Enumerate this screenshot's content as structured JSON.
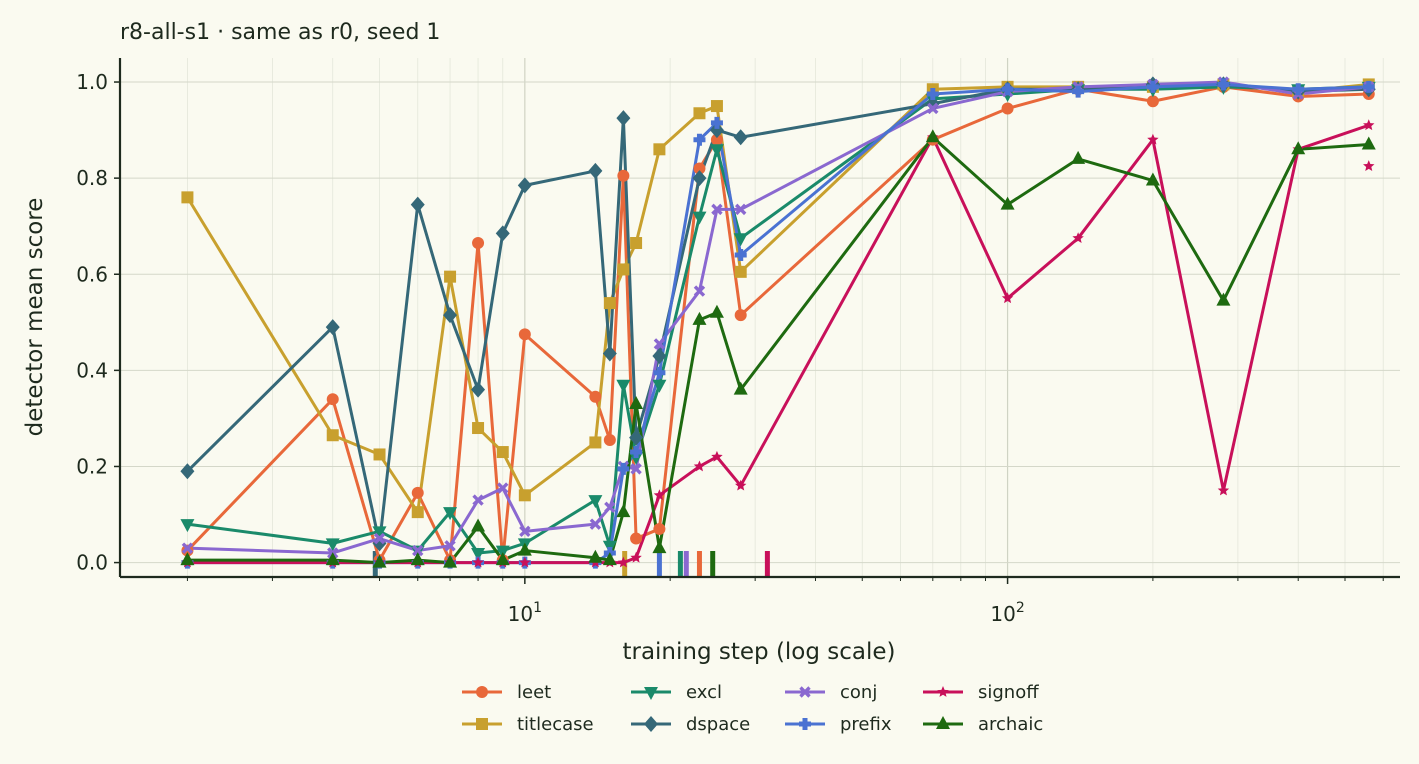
{
  "chart_data": {
    "type": "line",
    "title": "r8-all-s1 · same as r0, seed 1",
    "xlabel": "training step (log scale)",
    "ylabel": "detector mean score",
    "xscale": "log",
    "xlim": [
      1.45,
      650
    ],
    "ylim": [
      -0.03,
      1.05
    ],
    "yticks": [
      "0.0",
      "0.2",
      "0.4",
      "0.6",
      "0.8",
      "1.0"
    ],
    "xticks": [
      {
        "base": "10",
        "exp": "1"
      },
      {
        "base": "10",
        "exp": "2"
      }
    ],
    "grid": true,
    "legend_position": "bottom-center",
    "series": [
      {
        "name": "leet",
        "color": "#e8683a",
        "marker": "circle",
        "points": [
          [
            2,
            0.025
          ],
          [
            4,
            0.34
          ],
          [
            5,
            0.005
          ],
          [
            6,
            0.145
          ],
          [
            7,
            0.005
          ],
          [
            8,
            0.665
          ],
          [
            9,
            0.005
          ],
          [
            10,
            0.475
          ],
          [
            14,
            0.345
          ],
          [
            15,
            0.255
          ],
          [
            16,
            0.805
          ],
          [
            17,
            0.05
          ],
          [
            19,
            0.07
          ],
          [
            23,
            0.82
          ],
          [
            25,
            0.88
          ],
          [
            28,
            0.515
          ],
          [
            70,
            0.88
          ],
          [
            100,
            0.945
          ],
          [
            140,
            0.985
          ],
          [
            200,
            0.96
          ],
          [
            280,
            0.99
          ],
          [
            400,
            0.97
          ],
          [
            560,
            0.975
          ]
        ]
      },
      {
        "name": "titlecase",
        "color": "#c8a02e",
        "marker": "square",
        "points": [
          [
            2,
            0.76
          ],
          [
            4,
            0.265
          ],
          [
            5,
            0.225
          ],
          [
            6,
            0.105
          ],
          [
            7,
            0.595
          ],
          [
            8,
            0.28
          ],
          [
            9,
            0.23
          ],
          [
            10,
            0.14
          ],
          [
            14,
            0.25
          ],
          [
            15,
            0.54
          ],
          [
            16,
            0.61
          ],
          [
            17,
            0.665
          ],
          [
            19,
            0.86
          ],
          [
            23,
            0.935
          ],
          [
            25,
            0.95
          ],
          [
            28,
            0.605
          ],
          [
            70,
            0.985
          ],
          [
            100,
            0.99
          ],
          [
            140,
            0.99
          ],
          [
            200,
            0.99
          ],
          [
            280,
            0.995
          ],
          [
            400,
            0.98
          ],
          [
            560,
            0.995
          ]
        ]
      },
      {
        "name": "excl",
        "color": "#1a8a6a",
        "marker": "triangle-down",
        "points": [
          [
            2,
            0.08
          ],
          [
            4,
            0.04
          ],
          [
            5,
            0.065
          ],
          [
            6,
            0.025
          ],
          [
            7,
            0.105
          ],
          [
            8,
            0.02
          ],
          [
            9,
            0.025
          ],
          [
            10,
            0.04
          ],
          [
            14,
            0.13
          ],
          [
            15,
            0.035
          ],
          [
            16,
            0.37
          ],
          [
            17,
            0.22
          ],
          [
            19,
            0.37
          ],
          [
            23,
            0.72
          ],
          [
            25,
            0.86
          ],
          [
            28,
            0.675
          ],
          [
            70,
            0.965
          ],
          [
            100,
            0.975
          ],
          [
            140,
            0.985
          ],
          [
            200,
            0.985
          ],
          [
            280,
            0.99
          ],
          [
            400,
            0.985
          ],
          [
            560,
            0.99
          ]
        ]
      },
      {
        "name": "dspace",
        "color": "#356878",
        "marker": "diamond",
        "points": [
          [
            2,
            0.19
          ],
          [
            4,
            0.49
          ],
          [
            5,
            0.04
          ],
          [
            6,
            0.745
          ],
          [
            7,
            0.515
          ],
          [
            8,
            0.36
          ],
          [
            9,
            0.685
          ],
          [
            10,
            0.785
          ],
          [
            14,
            0.815
          ],
          [
            15,
            0.435
          ],
          [
            16,
            0.925
          ],
          [
            17,
            0.26
          ],
          [
            19,
            0.43
          ],
          [
            23,
            0.8
          ],
          [
            25,
            0.9
          ],
          [
            28,
            0.885
          ],
          [
            70,
            0.955
          ],
          [
            100,
            0.985
          ],
          [
            140,
            0.985
          ],
          [
            200,
            0.995
          ],
          [
            280,
            0.995
          ],
          [
            400,
            0.98
          ],
          [
            560,
            0.985
          ]
        ]
      },
      {
        "name": "conj",
        "color": "#8a68d0",
        "marker": "x",
        "points": [
          [
            2,
            0.03
          ],
          [
            4,
            0.02
          ],
          [
            5,
            0.05
          ],
          [
            6,
            0.025
          ],
          [
            7,
            0.035
          ],
          [
            8,
            0.13
          ],
          [
            9,
            0.155
          ],
          [
            10,
            0.065
          ],
          [
            14,
            0.08
          ],
          [
            15,
            0.115
          ],
          [
            16,
            0.2
          ],
          [
            17,
            0.195
          ],
          [
            19,
            0.455
          ],
          [
            23,
            0.565
          ],
          [
            25,
            0.735
          ],
          [
            28,
            0.735
          ],
          [
            70,
            0.945
          ],
          [
            100,
            0.98
          ],
          [
            140,
            0.99
          ],
          [
            200,
            0.995
          ],
          [
            280,
            1.0
          ],
          [
            400,
            0.975
          ],
          [
            560,
            0.99
          ]
        ]
      },
      {
        "name": "prefix",
        "color": "#4a72d2",
        "marker": "plus",
        "points": [
          [
            2,
            0.0
          ],
          [
            4,
            0.0
          ],
          [
            5,
            0.0
          ],
          [
            6,
            0.0
          ],
          [
            7,
            0.0
          ],
          [
            8,
            0.0
          ],
          [
            9,
            0.0
          ],
          [
            10,
            0.0
          ],
          [
            14,
            0.0
          ],
          [
            15,
            0.02
          ],
          [
            16,
            0.195
          ],
          [
            17,
            0.23
          ],
          [
            19,
            0.395
          ],
          [
            23,
            0.88
          ],
          [
            25,
            0.915
          ],
          [
            28,
            0.64
          ],
          [
            70,
            0.975
          ],
          [
            100,
            0.985
          ],
          [
            140,
            0.98
          ],
          [
            200,
            0.99
          ],
          [
            280,
            0.995
          ],
          [
            400,
            0.985
          ],
          [
            560,
            0.99
          ]
        ]
      },
      {
        "name": "signoff",
        "color": "#c8105a",
        "marker": "star",
        "points": [
          [
            2,
            0.0
          ],
          [
            4,
            0.0
          ],
          [
            5,
            0.0
          ],
          [
            6,
            0.0
          ],
          [
            7,
            0.0
          ],
          [
            8,
            0.0
          ],
          [
            9,
            0.0
          ],
          [
            10,
            0.0
          ],
          [
            14,
            0.0
          ],
          [
            15,
            0.0
          ],
          [
            16,
            0.0
          ],
          [
            17,
            0.01
          ],
          [
            19,
            0.14
          ],
          [
            23,
            0.2
          ],
          [
            25,
            0.22
          ],
          [
            28,
            0.16
          ],
          [
            70,
            0.885
          ],
          [
            100,
            0.55
          ],
          [
            140,
            0.675
          ],
          [
            200,
            0.88
          ],
          [
            280,
            0.15
          ],
          [
            400,
            0.86
          ],
          [
            560,
            0.91
          ]
        ]
      },
      {
        "name": "archaic",
        "color": "#1e6a10",
        "marker": "triangle-up",
        "points": [
          [
            2,
            0.005
          ],
          [
            4,
            0.005
          ],
          [
            5,
            0.0
          ],
          [
            6,
            0.005
          ],
          [
            7,
            0.0
          ],
          [
            8,
            0.075
          ],
          [
            9,
            0.005
          ],
          [
            10,
            0.025
          ],
          [
            14,
            0.01
          ],
          [
            15,
            0.005
          ],
          [
            16,
            0.105
          ],
          [
            17,
            0.33
          ],
          [
            19,
            0.03
          ],
          [
            23,
            0.505
          ],
          [
            25,
            0.52
          ],
          [
            28,
            0.36
          ],
          [
            70,
            0.885
          ],
          [
            100,
            0.745
          ],
          [
            140,
            0.84
          ],
          [
            200,
            0.795
          ],
          [
            280,
            0.545
          ],
          [
            400,
            0.86
          ],
          [
            560,
            0.87
          ]
        ]
      }
    ],
    "rug_marks": [
      {
        "x": 4.9,
        "color": "#356878"
      },
      {
        "x": 16.1,
        "color": "#c8a02e"
      },
      {
        "x": 19.0,
        "color": "#4a72d2"
      },
      {
        "x": 21.0,
        "color": "#1a8a6a"
      },
      {
        "x": 21.6,
        "color": "#8a68d0"
      },
      {
        "x": 23.0,
        "color": "#e8683a"
      },
      {
        "x": 24.5,
        "color": "#1e6a10"
      },
      {
        "x": 31.8,
        "color": "#c8105a"
      }
    ],
    "extra_points": [
      {
        "series": "signoff",
        "x": 560,
        "y": 0.825
      }
    ]
  }
}
